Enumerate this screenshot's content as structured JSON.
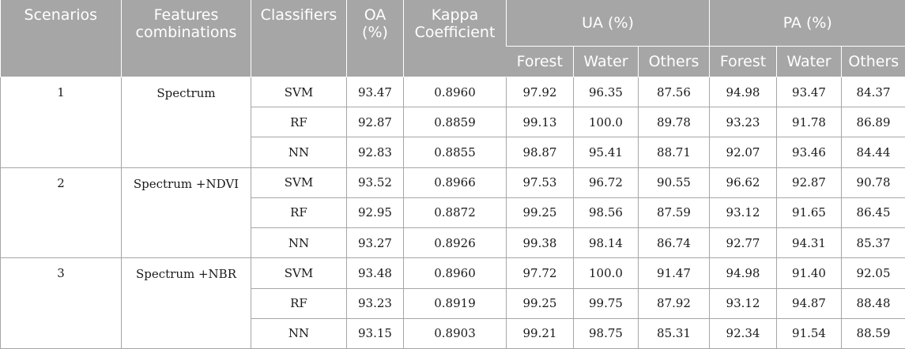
{
  "headers": {
    "scenarios": "Scenarios",
    "features": "Features combinations",
    "classifiers": "Classifiers",
    "oa": "OA (%)",
    "kappa": "Kappa Coefficient",
    "ua": "UA (%)",
    "pa": "PA (%)",
    "sub": [
      "Forest",
      "Water",
      "Others",
      "Forest",
      "Water",
      "Others"
    ]
  },
  "scenarios": [
    {
      "id": "1",
      "features": "Spectrum",
      "rows": [
        {
          "classifier": "SVM",
          "oa": "93.47",
          "kappa": "0.8960",
          "ua_forest": "97.92",
          "ua_water": "96.35",
          "ua_others": "87.56",
          "pa_forest": "94.98",
          "pa_water": "93.47",
          "pa_others": "84.37"
        },
        {
          "classifier": "RF",
          "oa": "92.87",
          "kappa": "0.8859",
          "ua_forest": "99.13",
          "ua_water": "100.0",
          "ua_others": "89.78",
          "pa_forest": "93.23",
          "pa_water": "91.78",
          "pa_others": "86.89"
        },
        {
          "classifier": "NN",
          "oa": "92.83",
          "kappa": "0.8855",
          "ua_forest": "98.87",
          "ua_water": "95.41",
          "ua_others": "88.71",
          "pa_forest": "92.07",
          "pa_water": "93.46",
          "pa_others": "84.44"
        }
      ]
    },
    {
      "id": "2",
      "features": "Spectrum +NDVI",
      "rows": [
        {
          "classifier": "SVM",
          "oa": "93.52",
          "kappa": "0.8966",
          "ua_forest": "97.53",
          "ua_water": "96.72",
          "ua_others": "90.55",
          "pa_forest": "96.62",
          "pa_water": "92.87",
          "pa_others": "90.78"
        },
        {
          "classifier": "RF",
          "oa": "92.95",
          "kappa": "0.8872",
          "ua_forest": "99.25",
          "ua_water": "98.56",
          "ua_others": "87.59",
          "pa_forest": "93.12",
          "pa_water": "91.65",
          "pa_others": "86.45"
        },
        {
          "classifier": "NN",
          "oa": "93.27",
          "kappa": "0.8926",
          "ua_forest": "99.38",
          "ua_water": "98.14",
          "ua_others": "86.74",
          "pa_forest": "92.77",
          "pa_water": "94.31",
          "pa_others": "85.37"
        }
      ]
    },
    {
      "id": "3",
      "features": "Spectrum +NBR",
      "rows": [
        {
          "classifier": "SVM",
          "oa": "93.48",
          "kappa": "0.8960",
          "ua_forest": "97.72",
          "ua_water": "100.0",
          "ua_others": "91.47",
          "pa_forest": "94.98",
          "pa_water": "91.40",
          "pa_others": "92.05"
        },
        {
          "classifier": "RF",
          "oa": "93.23",
          "kappa": "0.8919",
          "ua_forest": "99.25",
          "ua_water": "99.75",
          "ua_others": "87.92",
          "pa_forest": "93.12",
          "pa_water": "94.87",
          "pa_others": "88.48"
        },
        {
          "classifier": "NN",
          "oa": "93.15",
          "kappa": "0.8903",
          "ua_forest": "99.21",
          "ua_water": "98.75",
          "ua_others": "85.31",
          "pa_forest": "92.34",
          "pa_water": "91.54",
          "pa_others": "88.59"
        }
      ]
    }
  ]
}
